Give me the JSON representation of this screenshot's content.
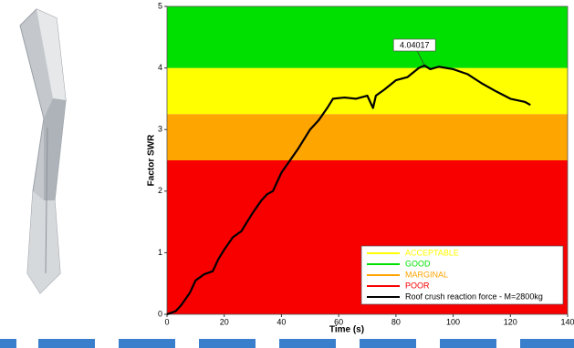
{
  "chart_data": {
    "type": "line",
    "xlabel": "Time (s)",
    "ylabel": "Factor SWR",
    "xlim": [
      0,
      140
    ],
    "xticks": [
      0,
      20,
      40,
      60,
      80,
      100,
      120,
      140
    ],
    "ylim": [
      0,
      5
    ],
    "yticks": [
      0,
      1,
      2,
      3,
      4,
      5
    ],
    "bands": [
      {
        "name": "ACCEPTABLE",
        "color": "#ffff00",
        "from": 3.25,
        "to": 4
      },
      {
        "name": "GOOD",
        "color": "#00e000",
        "from": 4,
        "to": 5
      },
      {
        "name": "MARGINAL",
        "color": "#ffa500",
        "from": 2.5,
        "to": 3.25
      },
      {
        "name": "POOR",
        "color": "#f80000",
        "from": 0,
        "to": 2.5
      }
    ],
    "series": [
      {
        "name": "Roof crush reaction force -  M=2800kg",
        "color": "#000000",
        "x": [
          0,
          3,
          5,
          8,
          10,
          13,
          16,
          18,
          20,
          23,
          26,
          28,
          30,
          33,
          35,
          37,
          40,
          43,
          46,
          50,
          53,
          56,
          58,
          62,
          66,
          70,
          72,
          73,
          76,
          80,
          84,
          88,
          90,
          92,
          95,
          100,
          105,
          110,
          115,
          120,
          125,
          127
        ],
        "values": [
          0,
          0.05,
          0.15,
          0.35,
          0.55,
          0.65,
          0.7,
          0.9,
          1.05,
          1.25,
          1.35,
          1.5,
          1.65,
          1.85,
          1.95,
          2.0,
          2.3,
          2.5,
          2.7,
          3.0,
          3.15,
          3.35,
          3.5,
          3.52,
          3.5,
          3.55,
          3.35,
          3.55,
          3.65,
          3.8,
          3.85,
          4.0,
          4.04,
          3.98,
          4.02,
          3.98,
          3.9,
          3.75,
          3.62,
          3.5,
          3.45,
          3.4
        ]
      }
    ],
    "annotation": {
      "text": "4.04017",
      "x": 90,
      "y": 4.04017
    }
  }
}
